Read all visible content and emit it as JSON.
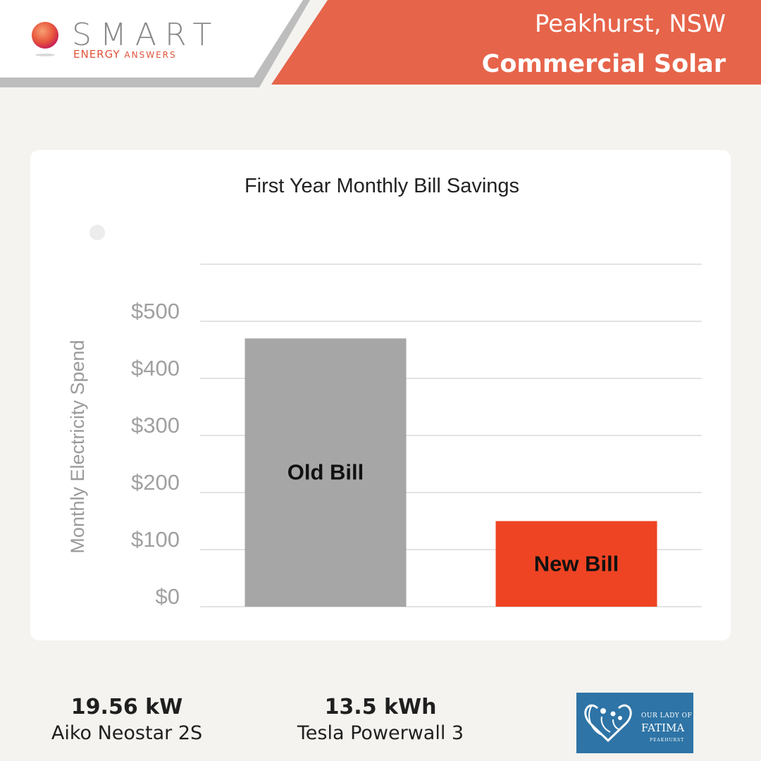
{
  "header": {
    "logo_word": "SMART",
    "logo_tag_a": "ENERGY ",
    "logo_tag_b": "ANSWERS",
    "location": "Peakhurst, NSW",
    "project_type": "Commercial Solar",
    "accent_color": "#e6644a"
  },
  "chart_data": {
    "type": "bar",
    "title": "First Year Monthly Bill Savings",
    "ylabel": "Monthly Electricity Spend",
    "xlabel": "",
    "categories": [
      "Old Bill",
      "New Bill"
    ],
    "values": [
      470,
      150
    ],
    "bar_colors": [
      "#a6a6a6",
      "#ef4423"
    ],
    "ylim": [
      0,
      600
    ],
    "yticks": [
      0,
      100,
      200,
      300,
      400,
      500
    ],
    "ytick_labels": [
      "$0",
      "$100",
      "$200",
      "$300",
      "$400",
      "$500"
    ],
    "grid": true,
    "legend": "none"
  },
  "specs": {
    "panel_power": "19.56 kW",
    "panel_model": "Aiko Neostar 2S",
    "battery_capacity": "13.5 kWh",
    "battery_model": "Tesla Powerwall 3"
  },
  "partner": {
    "line1": "OUR LADY OF",
    "line2": "FATIMA",
    "line3": "PEAKHURST",
    "color": "#2e74a6"
  }
}
